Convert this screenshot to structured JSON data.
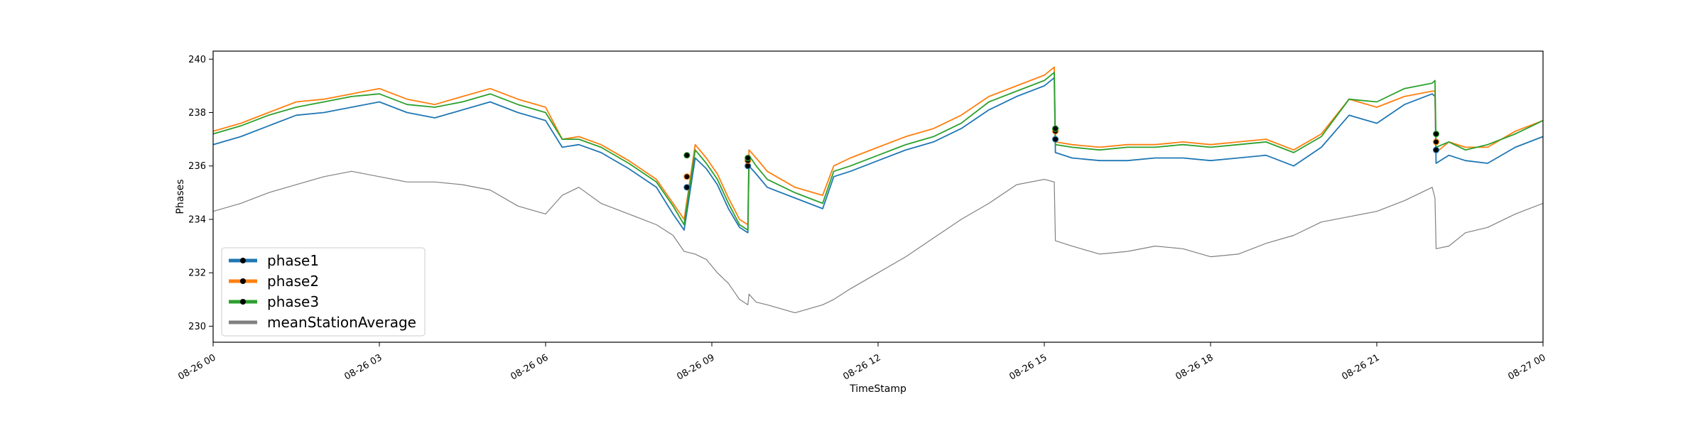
{
  "chart_data": {
    "type": "line",
    "title": "",
    "xlabel": "TimeStamp",
    "ylabel": "Phases",
    "xlim": [
      "08-26 00",
      "08-27 00"
    ],
    "ylim": [
      229.4,
      240.3
    ],
    "x_tick_labels": [
      "08-26 00",
      "08-26 03",
      "08-26 06",
      "08-26 09",
      "08-26 12",
      "08-26 15",
      "08-26 18",
      "08-26 21",
      "08-27 00"
    ],
    "x_tick_hours": [
      0,
      3,
      6,
      9,
      12,
      15,
      18,
      21,
      24
    ],
    "y_ticks": [
      230,
      232,
      234,
      236,
      238,
      240
    ],
    "grid": false,
    "legend_position": "lower-left",
    "series": [
      {
        "name": "phase1",
        "color": "#1f77b4",
        "hours": [
          0,
          0.5,
          1,
          1.5,
          2,
          2.5,
          3,
          3.5,
          4,
          4.5,
          5,
          5.5,
          6,
          6.3,
          6.6,
          7,
          7.5,
          8,
          8.3,
          8.5,
          8.7,
          8.9,
          9.1,
          9.3,
          9.5,
          9.65,
          9.67,
          9.8,
          10,
          10.5,
          11,
          11.2,
          11.5,
          12,
          12.5,
          13,
          13.5,
          14,
          14.5,
          15,
          15.18,
          15.2,
          15.5,
          16,
          16.5,
          17,
          17.5,
          18,
          18.5,
          19,
          19.5,
          20,
          20.5,
          21,
          21.5,
          22,
          22.05,
          22.07,
          22.3,
          22.6,
          23,
          23.5,
          24
        ],
        "values": [
          236.8,
          237.1,
          237.5,
          237.9,
          238.0,
          238.2,
          238.4,
          238.0,
          237.8,
          238.1,
          238.4,
          238.0,
          237.7,
          236.7,
          236.8,
          236.5,
          235.9,
          235.2,
          234.2,
          233.6,
          236.3,
          235.9,
          235.3,
          234.4,
          233.7,
          233.5,
          236.0,
          235.7,
          235.2,
          234.8,
          234.4,
          235.6,
          235.8,
          236.2,
          236.6,
          236.9,
          237.4,
          238.1,
          238.6,
          239.0,
          239.3,
          236.5,
          236.3,
          236.2,
          236.2,
          236.3,
          236.3,
          236.2,
          236.3,
          236.4,
          236.0,
          236.7,
          237.9,
          237.6,
          238.3,
          238.7,
          238.6,
          236.1,
          236.4,
          236.2,
          236.1,
          236.7,
          237.1
        ]
      },
      {
        "name": "phase2",
        "color": "#ff7f0e",
        "hours": [
          0,
          0.5,
          1,
          1.5,
          2,
          2.5,
          3,
          3.5,
          4,
          4.5,
          5,
          5.5,
          6,
          6.3,
          6.6,
          7,
          7.5,
          8,
          8.3,
          8.5,
          8.7,
          8.9,
          9.1,
          9.3,
          9.5,
          9.65,
          9.67,
          9.8,
          10,
          10.5,
          11,
          11.2,
          11.5,
          12,
          12.5,
          13,
          13.5,
          14,
          14.5,
          15,
          15.18,
          15.2,
          15.5,
          16,
          16.5,
          17,
          17.5,
          18,
          18.5,
          19,
          19.5,
          20,
          20.5,
          21,
          21.5,
          22,
          22.05,
          22.07,
          22.3,
          22.6,
          23,
          23.5,
          24
        ],
        "values": [
          237.3,
          237.6,
          238.0,
          238.4,
          238.5,
          238.7,
          238.9,
          238.5,
          238.3,
          238.6,
          238.9,
          238.5,
          238.2,
          237.0,
          237.1,
          236.8,
          236.2,
          235.5,
          234.6,
          234.0,
          236.8,
          236.3,
          235.7,
          234.8,
          234.0,
          233.8,
          236.6,
          236.3,
          235.8,
          235.2,
          234.9,
          236.0,
          236.3,
          236.7,
          237.1,
          237.4,
          237.9,
          238.6,
          239.0,
          239.4,
          239.7,
          236.9,
          236.8,
          236.7,
          236.8,
          236.8,
          236.9,
          236.8,
          236.9,
          237.0,
          236.6,
          237.2,
          238.5,
          238.2,
          238.6,
          238.8,
          238.8,
          236.5,
          236.9,
          236.7,
          236.7,
          237.3,
          237.7
        ]
      },
      {
        "name": "phase3",
        "color": "#2ca02c",
        "hours": [
          0,
          0.5,
          1,
          1.5,
          2,
          2.5,
          3,
          3.5,
          4,
          4.5,
          5,
          5.5,
          6,
          6.3,
          6.6,
          7,
          7.5,
          8,
          8.3,
          8.5,
          8.7,
          8.9,
          9.1,
          9.3,
          9.5,
          9.65,
          9.67,
          9.8,
          10,
          10.5,
          11,
          11.2,
          11.5,
          12,
          12.5,
          13,
          13.5,
          14,
          14.5,
          15,
          15.18,
          15.2,
          15.5,
          16,
          16.5,
          17,
          17.5,
          18,
          18.5,
          19,
          19.5,
          20,
          20.5,
          21,
          21.5,
          22,
          22.05,
          22.07,
          22.3,
          22.6,
          23,
          23.5,
          24
        ],
        "values": [
          237.2,
          237.5,
          237.9,
          238.2,
          238.4,
          238.6,
          238.7,
          238.3,
          238.2,
          238.4,
          238.7,
          238.3,
          238.0,
          237.0,
          237.0,
          236.7,
          236.1,
          235.4,
          234.5,
          233.8,
          236.6,
          236.1,
          235.5,
          234.6,
          233.8,
          233.6,
          236.4,
          236.0,
          235.5,
          235.0,
          234.6,
          235.8,
          236.0,
          236.4,
          236.8,
          237.1,
          237.6,
          238.4,
          238.8,
          239.2,
          239.5,
          236.8,
          236.7,
          236.6,
          236.7,
          236.7,
          236.8,
          236.7,
          236.8,
          236.9,
          236.5,
          237.1,
          238.5,
          238.4,
          238.9,
          239.1,
          239.2,
          236.7,
          236.9,
          236.6,
          236.8,
          237.2,
          237.7
        ]
      },
      {
        "name": "meanStationAverage",
        "color": "#808080",
        "hours": [
          0,
          0.5,
          1,
          1.5,
          2,
          2.5,
          3,
          3.5,
          4,
          4.5,
          5,
          5.5,
          6,
          6.3,
          6.6,
          7,
          7.5,
          8,
          8.3,
          8.5,
          8.7,
          8.9,
          9.1,
          9.3,
          9.5,
          9.65,
          9.67,
          9.8,
          10,
          10.5,
          11,
          11.2,
          11.5,
          12,
          12.5,
          13,
          13.5,
          14,
          14.5,
          15,
          15.18,
          15.2,
          15.5,
          16,
          16.5,
          17,
          17.5,
          18,
          18.5,
          19,
          19.5,
          20,
          20.5,
          21,
          21.5,
          22,
          22.05,
          22.07,
          22.3,
          22.6,
          23,
          23.5,
          24
        ],
        "values": [
          234.3,
          234.6,
          235.0,
          235.3,
          235.6,
          235.8,
          235.6,
          235.4,
          235.4,
          235.3,
          235.1,
          234.5,
          234.2,
          234.9,
          235.2,
          234.6,
          234.2,
          233.8,
          233.4,
          232.8,
          232.7,
          232.5,
          232.0,
          231.6,
          231.0,
          230.8,
          231.2,
          230.9,
          230.8,
          230.5,
          230.8,
          231.0,
          231.4,
          232.0,
          232.6,
          233.3,
          234.0,
          234.6,
          235.3,
          235.5,
          235.4,
          233.2,
          233.0,
          232.7,
          232.8,
          233.0,
          232.9,
          232.6,
          232.7,
          233.1,
          233.4,
          233.9,
          234.1,
          234.3,
          234.7,
          235.2,
          234.8,
          232.9,
          233.0,
          233.5,
          233.7,
          234.2,
          234.6
        ]
      }
    ],
    "markers": {
      "hours": [
        8.55,
        9.65,
        15.2,
        22.07
      ],
      "values_phase1": [
        235.2,
        236.0,
        237.0,
        236.6
      ],
      "values_phase2": [
        235.6,
        236.2,
        237.3,
        236.9
      ],
      "values_phase3": [
        236.4,
        236.3,
        237.4,
        237.2
      ]
    }
  }
}
